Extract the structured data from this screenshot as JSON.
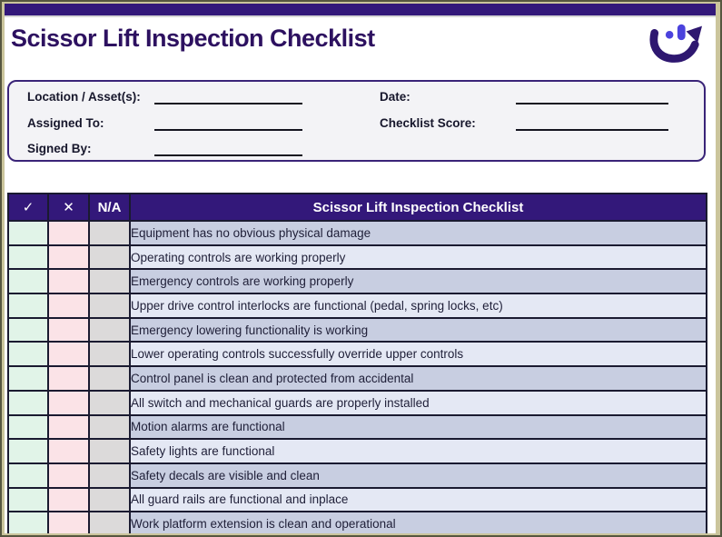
{
  "header": {
    "title": "Scissor Lift Inspection Checklist",
    "logo": "smile-arrow-logo"
  },
  "form": {
    "left": [
      {
        "label": "Location / Asset(s):",
        "value": ""
      },
      {
        "label": "Assigned To:",
        "value": ""
      },
      {
        "label": "Signed By:",
        "value": ""
      }
    ],
    "right": [
      {
        "label": "Date:",
        "value": ""
      },
      {
        "label": "Checklist Score:",
        "value": ""
      }
    ]
  },
  "table": {
    "columns": [
      {
        "label": "✓",
        "name": "pass"
      },
      {
        "label": "✕",
        "name": "fail"
      },
      {
        "label": "N/A",
        "name": "not-applicable"
      },
      {
        "label": "Scissor Lift Inspection Checklist",
        "name": "item"
      }
    ],
    "rows": [
      "Equipment has no obvious physical damage",
      "Operating controls are working properly",
      "Emergency controls are working properly",
      "Upper drive control interlocks are functional (pedal, spring locks, etc)",
      "Emergency lowering functionality is working",
      "Lower operating controls successfully override upper controls",
      "Control panel is clean and protected from accidental",
      "All switch and mechanical guards are properly installed",
      "Motion alarms are functional",
      "Safety lights are functional",
      "Safety decals are visible and clean",
      "All guard rails are functional and inplace",
      "Work platform extension is clean and operational"
    ]
  },
  "colors": {
    "accent": "#33187a",
    "title_text": "#2d1160",
    "row_alt_dark": "#c8cee1",
    "row_alt_light": "#e4e8f4",
    "pass_cell": "#e1f4e8",
    "fail_cell": "#fbe3e7",
    "na_cell": "#dcdada",
    "frame": "#cbc59c",
    "logo_arc": "#2e1770",
    "logo_dots": "#4b42dd"
  }
}
